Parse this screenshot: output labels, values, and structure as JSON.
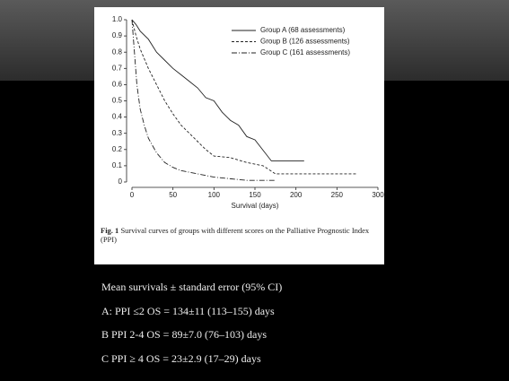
{
  "chart_data": {
    "type": "line",
    "xlabel": "Survival (days)",
    "xlim": [
      0,
      300
    ],
    "xticks": [
      0,
      50,
      100,
      150,
      200,
      250,
      300
    ],
    "ylim": [
      0,
      1
    ],
    "yticks": [
      0,
      0.1,
      0.2,
      0.3,
      0.4,
      0.5,
      0.6,
      0.7,
      0.8,
      0.9,
      {
        "value": 1,
        "label": "1.0"
      }
    ],
    "legend": "upper right",
    "series": [
      {
        "name": "Group A (68 assessments)",
        "color": "#222222",
        "dash": "solid",
        "x": [
          0,
          5,
          10,
          20,
          30,
          40,
          50,
          60,
          70,
          80,
          90,
          100,
          110,
          120,
          130,
          140,
          150,
          170,
          210
        ],
        "values": [
          1,
          0.97,
          0.93,
          0.88,
          0.8,
          0.75,
          0.7,
          0.66,
          0.62,
          0.58,
          0.52,
          0.5,
          0.43,
          0.38,
          0.35,
          0.28,
          0.26,
          0.13,
          0.13
        ]
      },
      {
        "name": "Group B (126 assessments)",
        "color": "#222222",
        "dash": "dashed",
        "x": [
          0,
          5,
          10,
          20,
          30,
          40,
          50,
          60,
          70,
          80,
          90,
          100,
          120,
          140,
          160,
          175,
          275
        ],
        "values": [
          1,
          0.9,
          0.82,
          0.7,
          0.6,
          0.5,
          0.42,
          0.35,
          0.3,
          0.25,
          0.2,
          0.16,
          0.15,
          0.12,
          0.1,
          0.05,
          0.05
        ]
      },
      {
        "name": "Group C (161 assessments)",
        "color": "#222222",
        "dash": "dashdot",
        "x": [
          0,
          3,
          6,
          10,
          15,
          20,
          30,
          40,
          50,
          60,
          80,
          100,
          120,
          140,
          175
        ],
        "values": [
          1,
          0.8,
          0.6,
          0.45,
          0.35,
          0.27,
          0.18,
          0.12,
          0.09,
          0.07,
          0.05,
          0.03,
          0.02,
          0.01,
          0.01
        ]
      }
    ],
    "caption_label": "Fig. 1",
    "caption": "Survival curves of groups with different scores on the Palliative Prognostic Index (PPI)"
  },
  "slide": {
    "lines": [
      "Mean survivals ± standard error (95% CI)",
      "A: PPI ≤2 OS = 134±11 (113–155) days",
      "B PPI 2-4 OS = 89±7.0 (76–103) days",
      "C PPI ≥ 4 OS = 23±2.9 (17–29) days"
    ]
  }
}
